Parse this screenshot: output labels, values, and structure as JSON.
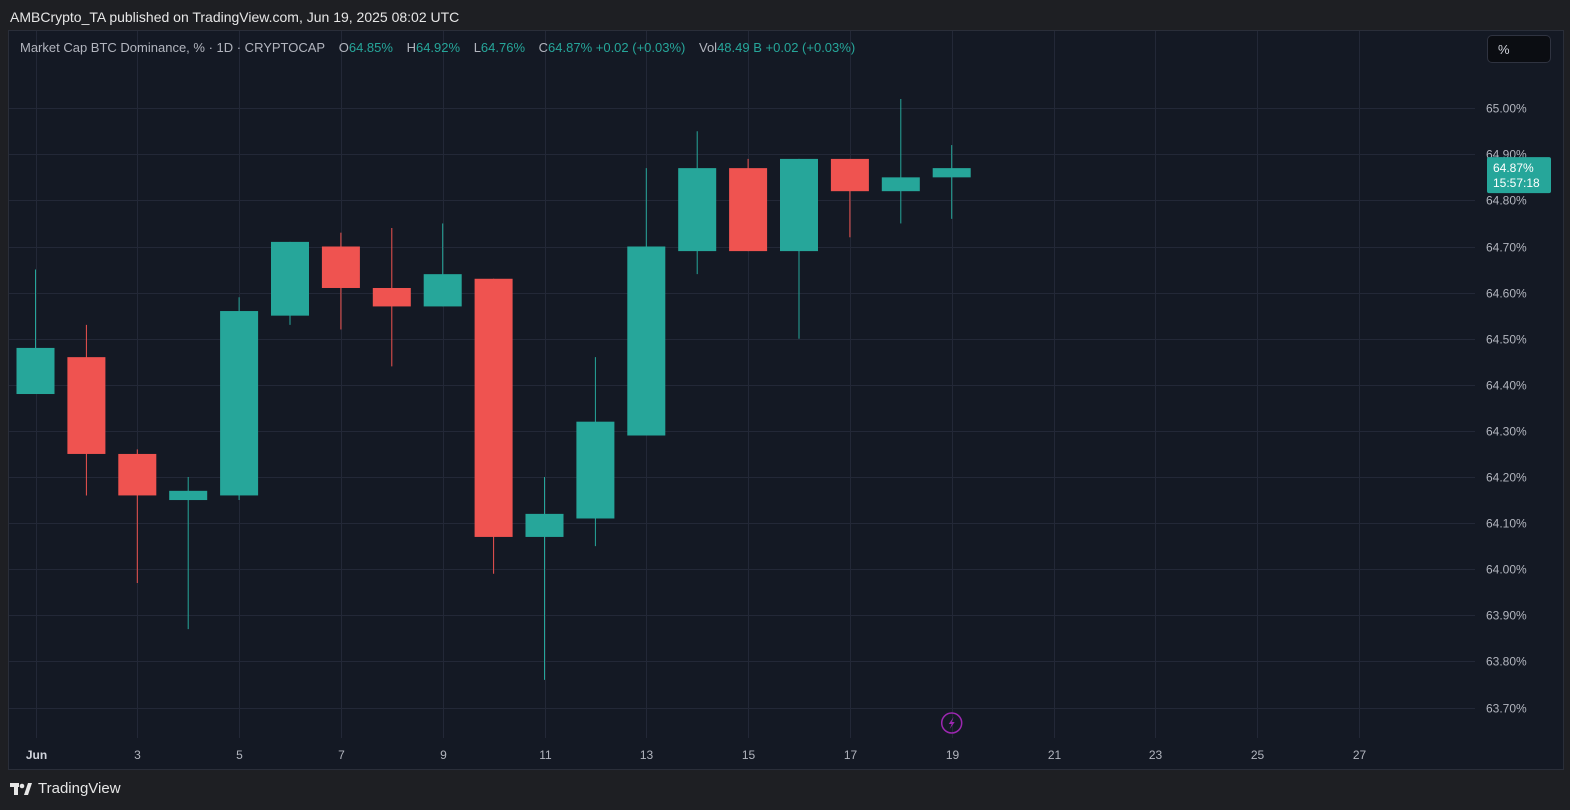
{
  "published": "AMBCrypto_TA published on TradingView.com, Jun 19, 2025 08:02 UTC",
  "legend": {
    "symbol": "Market Cap BTC Dominance, % · 1D · CRYPTOCAP",
    "o_label": "O",
    "o_value": "64.85%",
    "h_label": "H",
    "h_value": "64.92%",
    "l_label": "L",
    "l_value": "64.76%",
    "c_label": "C",
    "c_value": "64.87%",
    "change": "+0.02 (+0.03%)",
    "vol_label": "Vol",
    "vol_value": "48.49 B",
    "vol_change": "+0.02 (+0.03%)"
  },
  "toolbar": {
    "percent_label": "%"
  },
  "footer": {
    "brand": "TradingView"
  },
  "colors": {
    "up": "#26a69a",
    "down": "#ef5350",
    "grid": "#232837",
    "text": "#b2b5be",
    "bolt": "#9c27b0"
  },
  "chart_data": {
    "type": "candlestick",
    "ylim": [
      63.65,
      65.1
    ],
    "y_ticks": [
      63.7,
      63.8,
      63.9,
      64.0,
      64.1,
      64.2,
      64.3,
      64.4,
      64.5,
      64.6,
      64.7,
      64.8,
      64.9,
      65.0
    ],
    "y_tick_labels": [
      "63.70%",
      "63.80%",
      "63.90%",
      "64.00%",
      "64.10%",
      "64.20%",
      "64.30%",
      "64.40%",
      "64.50%",
      "64.60%",
      "64.70%",
      "64.80%",
      "64.90%",
      "65.00%"
    ],
    "x_ticks": [
      {
        "day": 1,
        "label": "Jun"
      },
      {
        "day": 3,
        "label": "3"
      },
      {
        "day": 5,
        "label": "5"
      },
      {
        "day": 7,
        "label": "7"
      },
      {
        "day": 9,
        "label": "9"
      },
      {
        "day": 11,
        "label": "11"
      },
      {
        "day": 13,
        "label": "13"
      },
      {
        "day": 15,
        "label": "15"
      },
      {
        "day": 17,
        "label": "17"
      },
      {
        "day": 19,
        "label": "19"
      },
      {
        "day": 21,
        "label": "21"
      },
      {
        "day": 23,
        "label": "23"
      },
      {
        "day": 25,
        "label": "25"
      },
      {
        "day": 27,
        "label": "27"
      }
    ],
    "candles": [
      {
        "day": 1,
        "open": 64.38,
        "high": 64.65,
        "low": 64.38,
        "close": 64.48
      },
      {
        "day": 2,
        "open": 64.46,
        "high": 64.53,
        "low": 64.16,
        "close": 64.25
      },
      {
        "day": 3,
        "open": 64.25,
        "high": 64.26,
        "low": 63.97,
        "close": 64.16
      },
      {
        "day": 4,
        "open": 64.15,
        "high": 64.2,
        "low": 63.87,
        "close": 64.17
      },
      {
        "day": 5,
        "open": 64.16,
        "high": 64.59,
        "low": 64.15,
        "close": 64.56
      },
      {
        "day": 6,
        "open": 64.55,
        "high": 64.71,
        "low": 64.53,
        "close": 64.71
      },
      {
        "day": 7,
        "open": 64.7,
        "high": 64.73,
        "low": 64.52,
        "close": 64.61
      },
      {
        "day": 8,
        "open": 64.61,
        "high": 64.74,
        "low": 64.44,
        "close": 64.57
      },
      {
        "day": 9,
        "open": 64.57,
        "high": 64.75,
        "low": 64.57,
        "close": 64.64
      },
      {
        "day": 10,
        "open": 64.63,
        "high": 64.63,
        "low": 63.99,
        "close": 64.07
      },
      {
        "day": 11,
        "open": 64.07,
        "high": 64.2,
        "low": 63.76,
        "close": 64.12
      },
      {
        "day": 12,
        "open": 64.11,
        "high": 64.46,
        "low": 64.05,
        "close": 64.32
      },
      {
        "day": 13,
        "open": 64.29,
        "high": 64.87,
        "low": 64.29,
        "close": 64.7
      },
      {
        "day": 14,
        "open": 64.69,
        "high": 64.95,
        "low": 64.64,
        "close": 64.87
      },
      {
        "day": 15,
        "open": 64.87,
        "high": 64.89,
        "low": 64.69,
        "close": 64.69
      },
      {
        "day": 16,
        "open": 64.69,
        "high": 64.89,
        "low": 64.5,
        "close": 64.89
      },
      {
        "day": 17,
        "open": 64.89,
        "high": 64.89,
        "low": 64.72,
        "close": 64.82
      },
      {
        "day": 18,
        "open": 64.82,
        "high": 65.02,
        "low": 64.75,
        "close": 64.85
      },
      {
        "day": 19,
        "open": 64.85,
        "high": 64.92,
        "low": 64.76,
        "close": 64.87
      }
    ],
    "last_price_label": "64.87%",
    "countdown": "15:57:18",
    "grid": true
  }
}
